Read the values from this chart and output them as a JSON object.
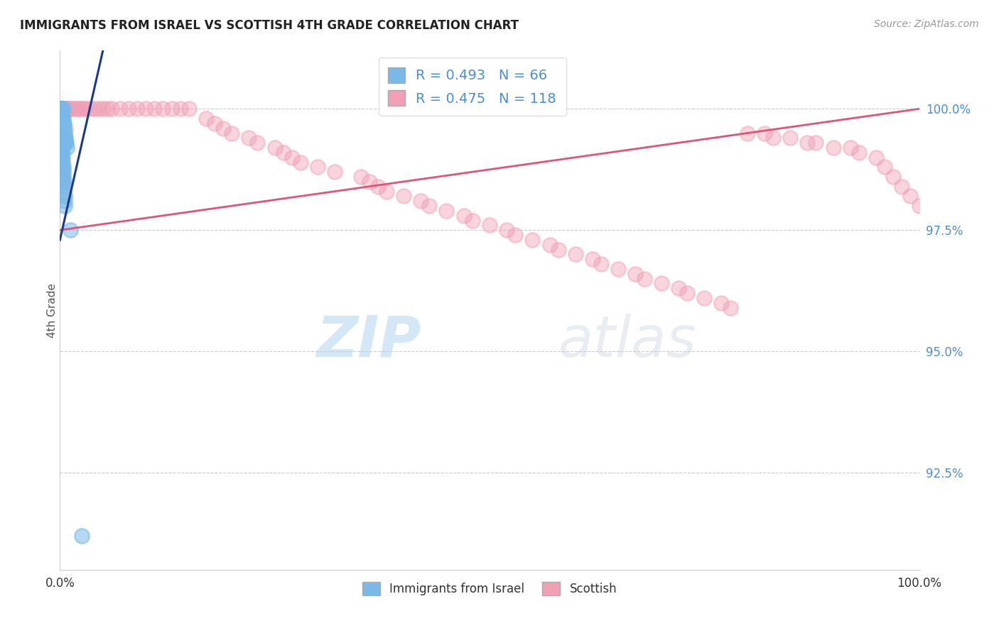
{
  "title": "IMMIGRANTS FROM ISRAEL VS SCOTTISH 4TH GRADE CORRELATION CHART",
  "source_text": "Source: ZipAtlas.com",
  "ylabel": "4th Grade",
  "xmin": 0.0,
  "xmax": 100.0,
  "ymin": 90.5,
  "ymax": 101.2,
  "ytick_values": [
    92.5,
    95.0,
    97.5,
    100.0
  ],
  "legend_labels": [
    "Immigrants from Israel",
    "Scottish"
  ],
  "blue_R": 0.493,
  "blue_N": 66,
  "pink_R": 0.475,
  "pink_N": 118,
  "blue_color": "#7ab8e8",
  "pink_color": "#f0a0b5",
  "blue_line_color": "#1a3a8a",
  "pink_line_color": "#e05575",
  "watermark1": "ZIP",
  "watermark2": "atlas",
  "blue_scatter_x": [
    0.05,
    0.08,
    0.1,
    0.1,
    0.12,
    0.12,
    0.14,
    0.15,
    0.15,
    0.18,
    0.18,
    0.2,
    0.22,
    0.22,
    0.24,
    0.25,
    0.25,
    0.26,
    0.28,
    0.28,
    0.3,
    0.3,
    0.32,
    0.35,
    0.36,
    0.38,
    0.4,
    0.42,
    0.44,
    0.45,
    0.48,
    0.5,
    0.52,
    0.55,
    0.58,
    0.6,
    0.62,
    0.65,
    0.7,
    0.8,
    0.06,
    0.09,
    0.11,
    0.13,
    0.16,
    0.19,
    0.21,
    0.23,
    0.27,
    0.29,
    0.33,
    0.37,
    0.39,
    0.41,
    0.43,
    0.46,
    0.49,
    0.53,
    0.56,
    0.59,
    0.07,
    0.04,
    0.17,
    0.31,
    1.2,
    2.5
  ],
  "blue_scatter_y": [
    100.0,
    100.0,
    100.0,
    99.9,
    100.0,
    99.8,
    100.0,
    100.0,
    99.7,
    100.0,
    99.6,
    100.0,
    99.8,
    99.5,
    99.8,
    100.0,
    99.6,
    99.7,
    99.8,
    99.4,
    99.8,
    99.5,
    99.7,
    100.0,
    99.6,
    99.7,
    99.8,
    99.6,
    99.7,
    99.5,
    99.5,
    99.6,
    99.4,
    99.5,
    99.3,
    99.4,
    99.3,
    99.3,
    99.3,
    99.2,
    99.9,
    99.8,
    99.7,
    99.6,
    99.5,
    99.4,
    99.3,
    99.2,
    99.1,
    99.0,
    98.9,
    98.8,
    98.7,
    98.6,
    98.5,
    98.4,
    98.3,
    98.2,
    98.1,
    98.0,
    99.0,
    99.1,
    98.8,
    98.5,
    97.5,
    91.2
  ],
  "pink_scatter_x": [
    0.05,
    0.08,
    0.1,
    0.12,
    0.14,
    0.15,
    0.18,
    0.2,
    0.22,
    0.25,
    0.28,
    0.3,
    0.32,
    0.35,
    0.38,
    0.4,
    0.42,
    0.45,
    0.48,
    0.5,
    0.55,
    0.6,
    0.65,
    0.7,
    0.8,
    0.9,
    1.0,
    1.2,
    1.5,
    1.8,
    2.0,
    2.2,
    2.5,
    2.8,
    3.0,
    3.5,
    4.0,
    4.5,
    5.0,
    5.5,
    6.0,
    7.0,
    8.0,
    9.0,
    10.0,
    11.0,
    12.0,
    13.0,
    14.0,
    15.0,
    17.0,
    18.0,
    19.0,
    20.0,
    22.0,
    23.0,
    25.0,
    26.0,
    27.0,
    28.0,
    30.0,
    32.0,
    35.0,
    36.0,
    37.0,
    38.0,
    40.0,
    42.0,
    43.0,
    45.0,
    47.0,
    48.0,
    50.0,
    52.0,
    53.0,
    55.0,
    57.0,
    58.0,
    60.0,
    62.0,
    63.0,
    65.0,
    67.0,
    68.0,
    70.0,
    72.0,
    73.0,
    75.0,
    77.0,
    78.0,
    80.0,
    82.0,
    83.0,
    85.0,
    87.0,
    88.0,
    90.0,
    92.0,
    93.0,
    95.0,
    96.0,
    97.0,
    98.0,
    99.0,
    100.0,
    0.06,
    0.09,
    0.11,
    0.13,
    0.16,
    0.19,
    0.21,
    0.23,
    0.27,
    0.29,
    0.33,
    0.37,
    0.6
  ],
  "pink_scatter_y": [
    100.0,
    100.0,
    100.0,
    100.0,
    100.0,
    100.0,
    100.0,
    100.0,
    100.0,
    100.0,
    100.0,
    100.0,
    100.0,
    100.0,
    100.0,
    100.0,
    100.0,
    100.0,
    100.0,
    100.0,
    100.0,
    100.0,
    100.0,
    100.0,
    100.0,
    100.0,
    100.0,
    100.0,
    100.0,
    100.0,
    100.0,
    100.0,
    100.0,
    100.0,
    100.0,
    100.0,
    100.0,
    100.0,
    100.0,
    100.0,
    100.0,
    100.0,
    100.0,
    100.0,
    100.0,
    100.0,
    100.0,
    100.0,
    100.0,
    100.0,
    99.8,
    99.7,
    99.6,
    99.5,
    99.4,
    99.3,
    99.2,
    99.1,
    99.0,
    98.9,
    98.8,
    98.7,
    98.6,
    98.5,
    98.4,
    98.3,
    98.2,
    98.1,
    98.0,
    97.9,
    97.8,
    97.7,
    97.6,
    97.5,
    97.4,
    97.3,
    97.2,
    97.1,
    97.0,
    96.9,
    96.8,
    96.7,
    96.6,
    96.5,
    96.4,
    96.3,
    96.2,
    96.1,
    96.0,
    95.9,
    99.5,
    99.5,
    99.4,
    99.4,
    99.3,
    99.3,
    99.2,
    99.2,
    99.1,
    99.0,
    98.8,
    98.6,
    98.4,
    98.2,
    98.0,
    99.5,
    99.4,
    99.3,
    99.2,
    99.1,
    99.0,
    98.9,
    98.8,
    98.7,
    98.6,
    98.5,
    98.4,
    99.6
  ],
  "blue_trendline": [
    [
      0.0,
      5.0
    ],
    [
      97.3,
      101.2
    ]
  ],
  "pink_trendline": [
    [
      0.0,
      100.0
    ],
    [
      97.5,
      100.0
    ]
  ]
}
